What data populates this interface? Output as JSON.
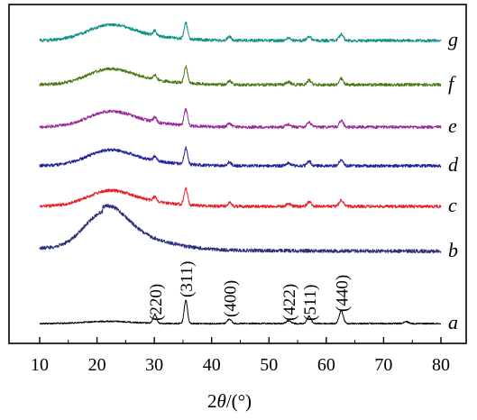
{
  "chart_data": {
    "type": "line",
    "xlabel": {
      "prefix": "2",
      "symbol": "θ",
      "suffix": "/(°)"
    },
    "xlim": [
      10,
      80
    ],
    "x_ticks": [
      10,
      20,
      30,
      40,
      50,
      60,
      70,
      80
    ],
    "x_tick_labels": [
      "10",
      "20",
      "30",
      "40",
      "50",
      "60",
      "70",
      "80"
    ],
    "yticks_shown": false,
    "grid": false,
    "legend": "none",
    "series": [
      {
        "label": "a",
        "color": "#000000",
        "profile": "spinel"
      },
      {
        "label": "b",
        "color": "#2b2f7a",
        "profile": "amorphous"
      },
      {
        "label": "c",
        "color": "#e8202a",
        "profile": "composite"
      },
      {
        "label": "d",
        "color": "#23249a",
        "profile": "composite"
      },
      {
        "label": "e",
        "color": "#9a2a9c",
        "profile": "composite"
      },
      {
        "label": "f",
        "color": "#4a7a16",
        "profile": "composite"
      },
      {
        "label": "g",
        "color": "#10928a",
        "profile": "composite"
      }
    ],
    "peaks": [
      {
        "hkl": "(220)",
        "two_theta": 30.1
      },
      {
        "hkl": "(311)",
        "two_theta": 35.5
      },
      {
        "hkl": "(400)",
        "two_theta": 43.1
      },
      {
        "hkl": "(422)",
        "two_theta": 53.4
      },
      {
        "hkl": "(511)",
        "two_theta": 57.0
      },
      {
        "hkl": "(440)",
        "two_theta": 62.6
      }
    ]
  }
}
